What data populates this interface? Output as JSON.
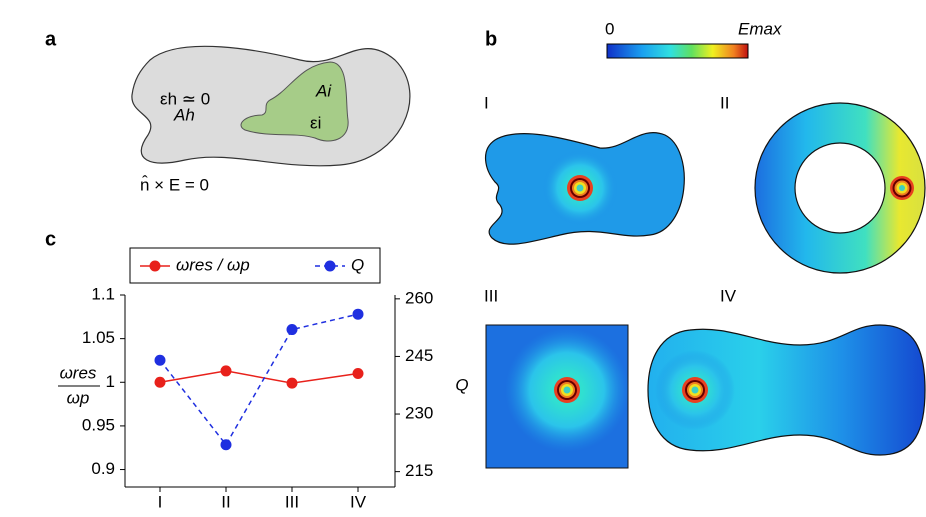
{
  "panel_a": {
    "label": "a",
    "eps_h": "εh ≃ 0",
    "A_h": "Ah",
    "A_i": "Ai",
    "eps_i": "εi",
    "boundary": "n̂ × E = 0"
  },
  "panel_b": {
    "label": "b",
    "colorbar_min": "0",
    "colorbar_max": "Emax",
    "shapes": [
      "I",
      "II",
      "III",
      "IV"
    ]
  },
  "panel_c": {
    "label": "c"
  },
  "chart_data": {
    "type": "line",
    "categories": [
      "I",
      "II",
      "III",
      "IV"
    ],
    "y_label_numerator": "ωres",
    "y_label_denominator": "ωp",
    "y2_label": "Q",
    "ylim": [
      0.88,
      1.1
    ],
    "yticks": [
      0.9,
      0.95,
      1,
      1.05,
      1.1
    ],
    "y2lim": [
      211,
      261
    ],
    "y2ticks": [
      215,
      230,
      245,
      260
    ],
    "series": [
      {
        "name": "ωres / ωp",
        "color": "#e8211b",
        "values": [
          1.0,
          1.013,
          0.999,
          1.01
        ]
      },
      {
        "name": "Q",
        "color": "#1f2fe0",
        "axis": "y2",
        "dashed": true,
        "values": [
          244,
          222,
          252,
          256
        ]
      }
    ]
  }
}
